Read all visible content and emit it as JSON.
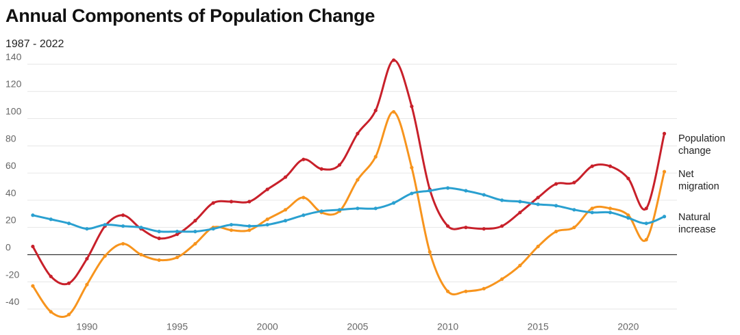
{
  "page": {
    "title": "Annual Components of Population Change",
    "subtitle": "1987 - 2022"
  },
  "chart_data": {
    "type": "line",
    "title": "Annual Components of Population Change",
    "subtitle": "1987 - 2022",
    "xlabel": "",
    "ylabel": "",
    "x": [
      1987,
      1988,
      1989,
      1990,
      1991,
      1992,
      1993,
      1994,
      1995,
      1996,
      1997,
      1998,
      1999,
      2000,
      2001,
      2002,
      2003,
      2004,
      2005,
      2006,
      2007,
      2008,
      2009,
      2010,
      2011,
      2012,
      2013,
      2014,
      2015,
      2016,
      2017,
      2018,
      2019,
      2020,
      2021,
      2022
    ],
    "xlim": [
      1986.7,
      2022.7
    ],
    "ylim": [
      -45,
      145
    ],
    "x_ticks": [
      1990,
      1995,
      2000,
      2005,
      2010,
      2015,
      2020
    ],
    "y_ticks": [
      -40,
      -20,
      0,
      20,
      40,
      60,
      80,
      100,
      120,
      140
    ],
    "grid": true,
    "zero_line": true,
    "series": [
      {
        "name": "Population change",
        "legend": [
          "Population",
          "change"
        ],
        "color": "#c8202a",
        "values": [
          6,
          -16,
          -21,
          -3,
          21,
          29,
          19,
          12,
          15,
          25,
          38,
          39,
          39,
          48,
          57,
          70,
          63,
          66,
          89,
          106,
          143,
          109,
          48,
          21,
          20,
          19,
          21,
          31,
          42,
          52,
          53,
          65,
          65,
          56,
          34,
          89
        ]
      },
      {
        "name": "Net migration",
        "legend": [
          "Net",
          "migration"
        ],
        "color": "#f7941d",
        "values": [
          -23,
          -42,
          -44,
          -22,
          -1,
          8,
          0,
          -4,
          -2,
          8,
          20,
          18,
          18,
          26,
          33,
          42,
          31,
          32,
          55,
          72,
          105,
          64,
          2,
          -27,
          -27,
          -25,
          -18,
          -8,
          6,
          17,
          20,
          34,
          34,
          29,
          11,
          61
        ]
      },
      {
        "name": "Natural increase",
        "legend": [
          "Natural",
          "increase"
        ],
        "color": "#2aa0d0",
        "values": [
          29,
          26,
          23,
          19,
          22,
          21,
          20,
          17,
          17,
          17,
          19,
          22,
          21,
          22,
          25,
          29,
          32,
          33,
          34,
          34,
          38,
          45,
          47,
          49,
          47,
          44,
          40,
          39,
          37,
          36,
          33,
          31,
          31,
          27,
          23,
          28
        ]
      }
    ]
  }
}
